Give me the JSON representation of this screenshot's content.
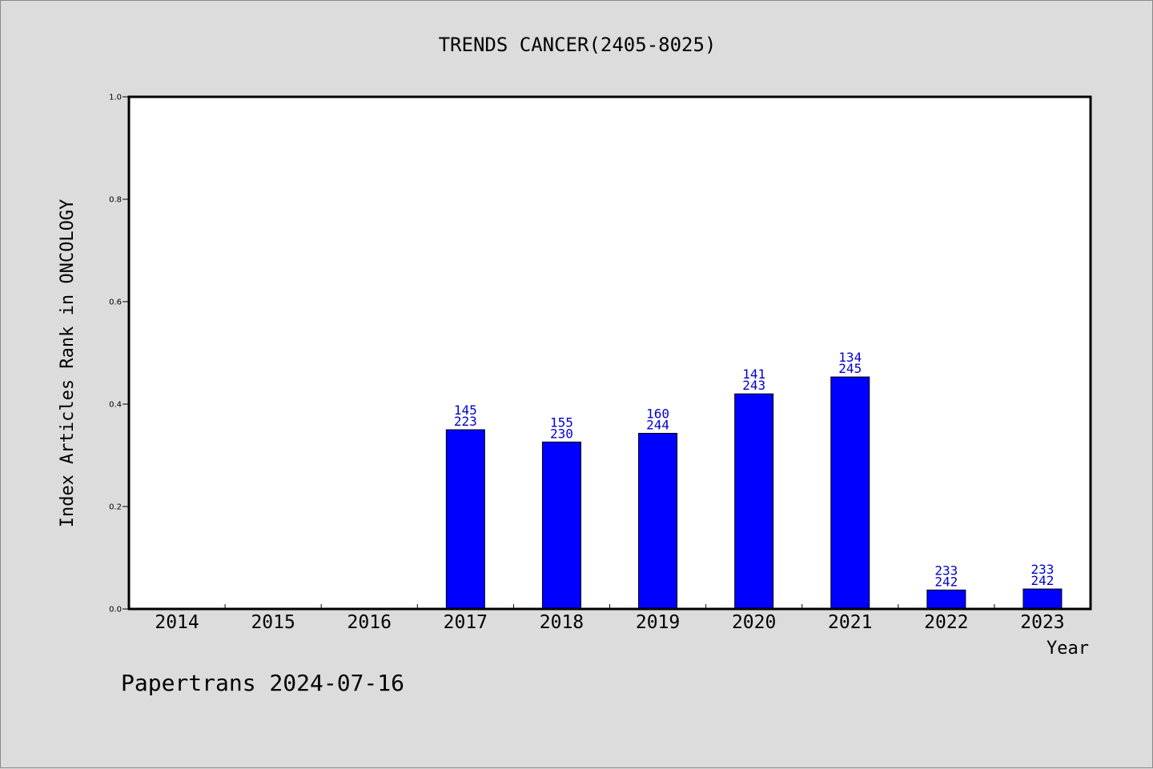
{
  "chart_data": {
    "type": "bar",
    "title": "TRENDS CANCER(2405-8025)",
    "xlabel": "Year",
    "ylabel": "Index Articles Rank in ONCOLOGY",
    "ylim": [
      0,
      1.0
    ],
    "yticks": [
      "0.0",
      "0.2",
      "0.4",
      "0.6",
      "0.8",
      "1.0"
    ],
    "ytick_values": [
      0,
      0.2,
      0.4,
      0.6,
      0.8,
      1.0
    ],
    "categories": [
      "2014",
      "2015",
      "2016",
      "2017",
      "2018",
      "2019",
      "2020",
      "2021",
      "2022",
      "2023"
    ],
    "values": [
      null,
      null,
      null,
      0.35,
      0.326,
      0.343,
      0.42,
      0.453,
      0.037,
      0.039
    ],
    "label_top": [
      null,
      null,
      null,
      "145",
      "155",
      "160",
      "141",
      "134",
      "233",
      "233"
    ],
    "label_bottom": [
      null,
      null,
      null,
      "223",
      "230",
      "244",
      "243",
      "245",
      "242",
      "242"
    ],
    "bar_color": "#0000ff",
    "label_color": "#0000cc",
    "grid": false
  },
  "footer": "Papertrans 2024-07-16"
}
